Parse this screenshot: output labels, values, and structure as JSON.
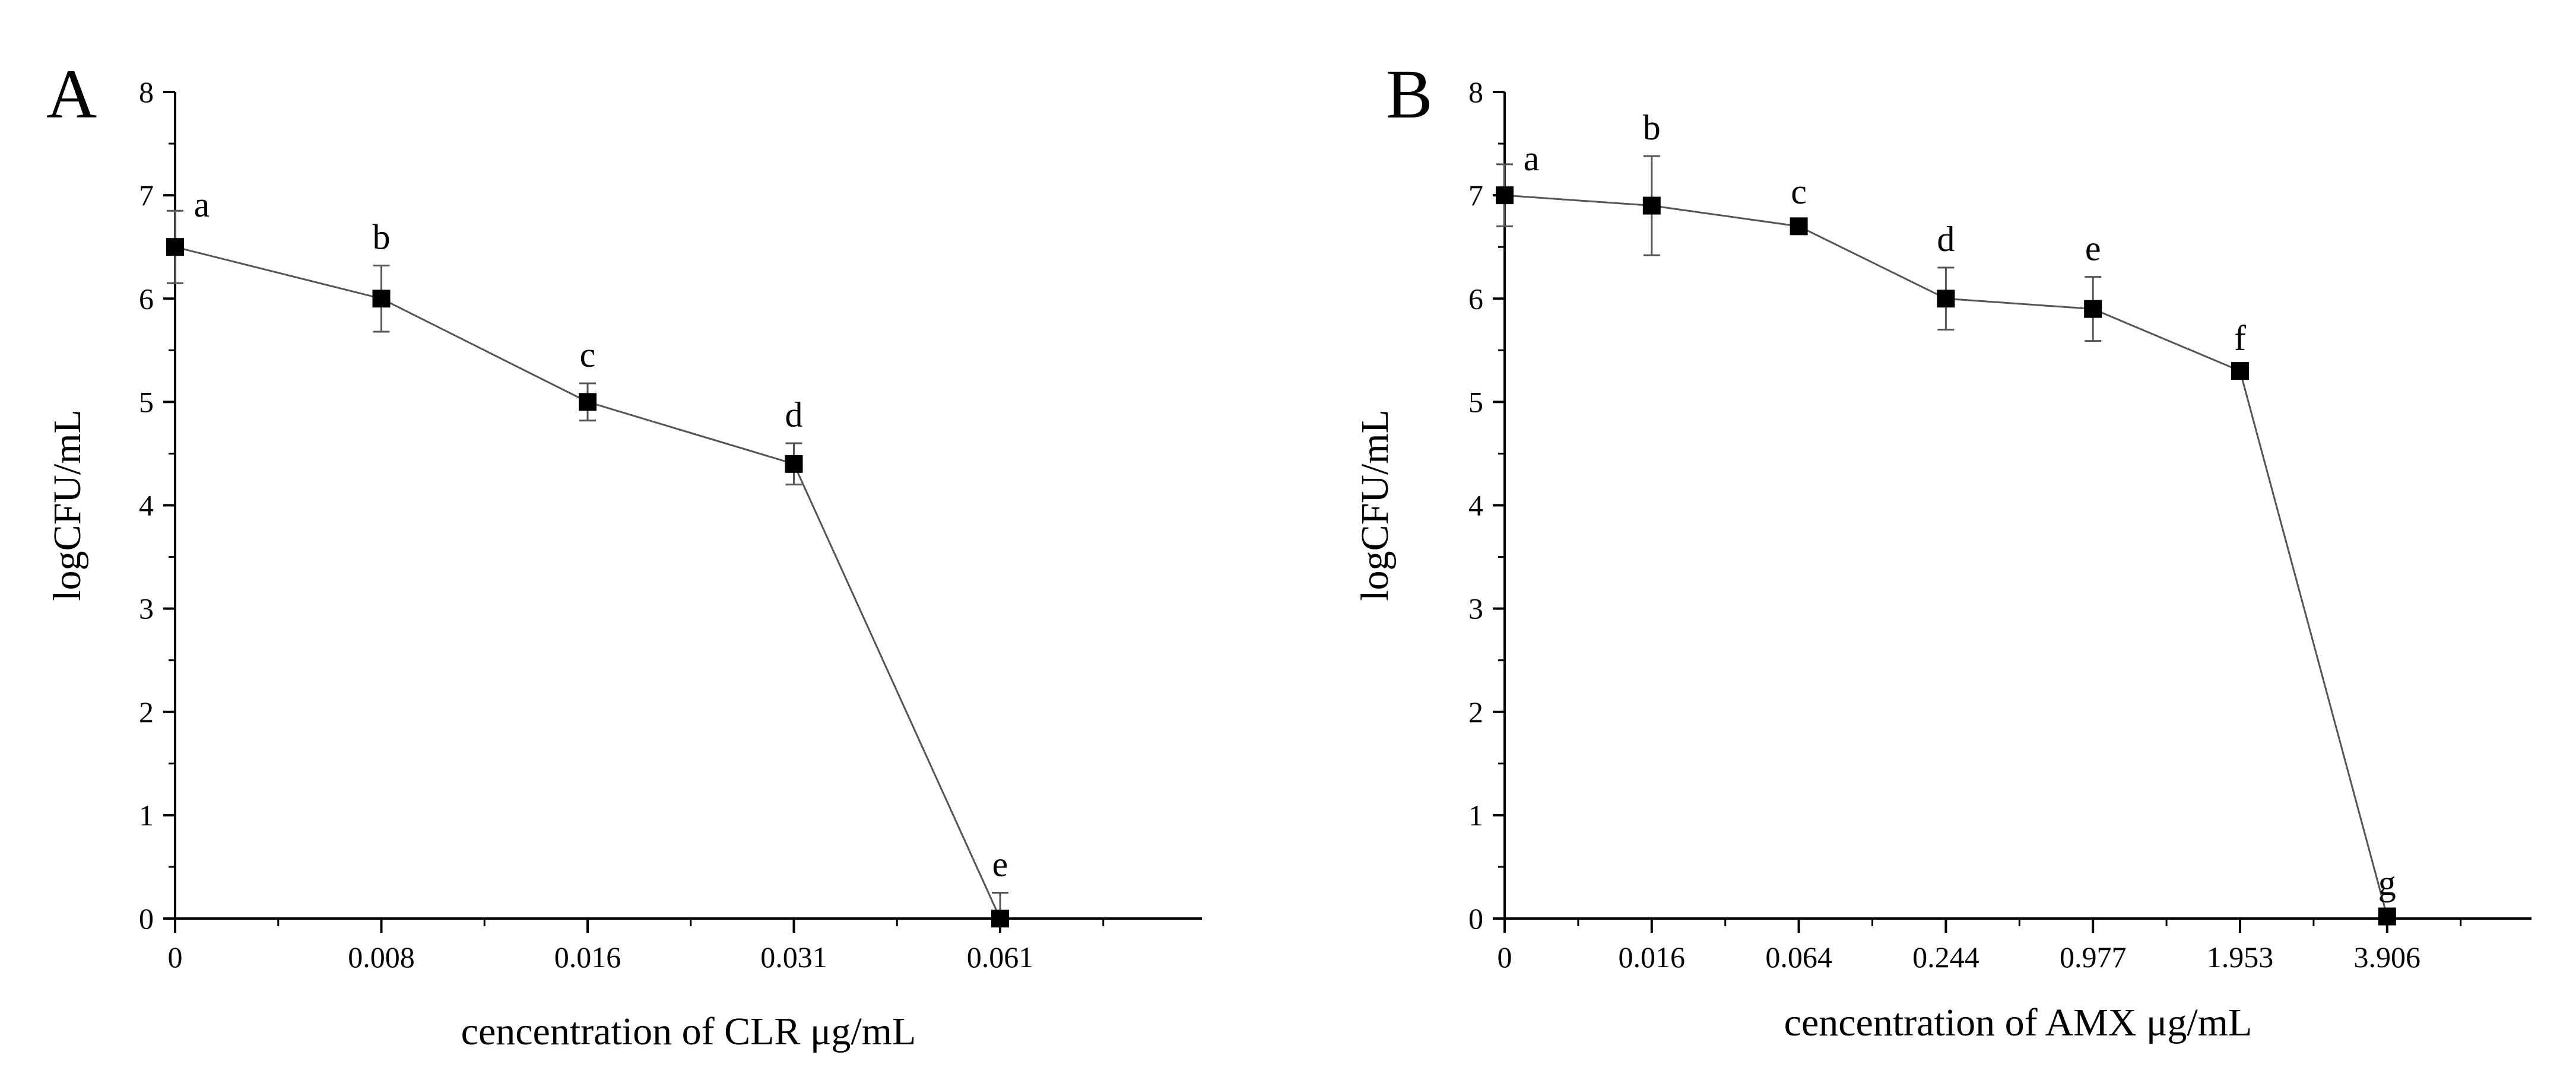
{
  "chart_data": [
    {
      "type": "line",
      "panel_label": "A",
      "xlabel": "cencentration of CLR μg/mL",
      "ylabel": "logCFU/mL",
      "categories": [
        "0",
        "0.008",
        "0.016",
        "0.031",
        "0.061"
      ],
      "values": [
        6.5,
        6.0,
        5.0,
        4.4,
        0.0
      ],
      "errors": [
        0.35,
        0.32,
        0.18,
        0.2,
        0.25
      ],
      "significance": [
        "a",
        "b",
        "c",
        "d",
        "e"
      ],
      "ylim": [
        0,
        8
      ],
      "yticks": [
        "0",
        "1",
        "2",
        "3",
        "4",
        "5",
        "6",
        "7",
        "8"
      ],
      "grid": false
    },
    {
      "type": "line",
      "panel_label": "B",
      "xlabel": "cencentration of AMX μg/mL",
      "ylabel": "logCFU/mL",
      "categories": [
        "0",
        "0.016",
        "0.064",
        "0.244",
        "0.977",
        "1.953",
        "3.906"
      ],
      "values": [
        7.0,
        6.9,
        6.7,
        6.0,
        5.9,
        5.3,
        0.02
      ],
      "errors": [
        0.3,
        0.48,
        0.06,
        0.3,
        0.31,
        0.04,
        0.05
      ],
      "significance": [
        "a",
        "b",
        "c",
        "d",
        "e",
        "f",
        "g"
      ],
      "ylim": [
        0,
        8
      ],
      "yticks": [
        "0",
        "1",
        "2",
        "3",
        "4",
        "5",
        "6",
        "7",
        "8"
      ],
      "grid": false
    }
  ]
}
